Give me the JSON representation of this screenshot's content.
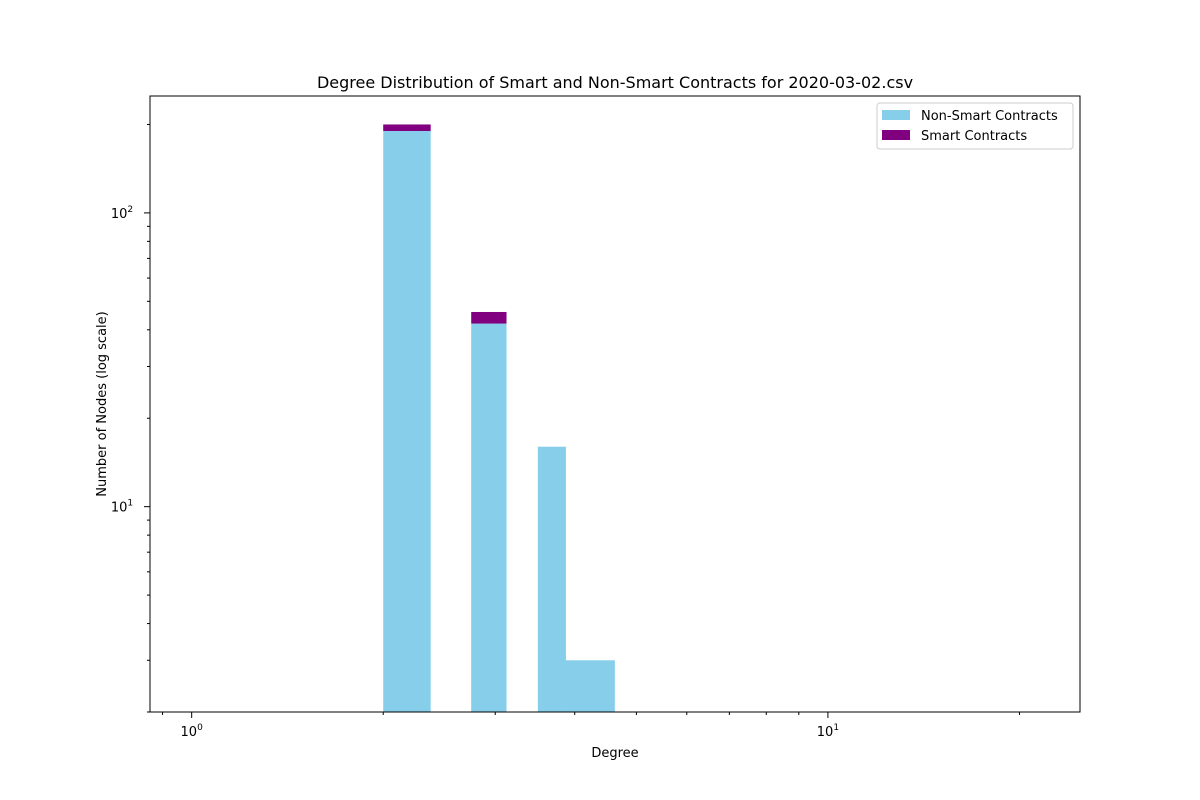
{
  "chart_data": {
    "type": "bar",
    "title": "Degree Distribution of Smart and Non-Smart Contracts for 2020-03-02.csv",
    "xlabel": "Degree",
    "ylabel": "Number of Nodes (log scale)",
    "xscale": "log",
    "yscale": "log",
    "xlim": [
      0.86,
      24.9
    ],
    "ylim": [
      2.0,
      250
    ],
    "x_ticks": [
      {
        "value": 1,
        "base": "10",
        "exp": "0"
      },
      {
        "value": 10,
        "base": "10",
        "exp": "1"
      }
    ],
    "y_ticks": [
      {
        "value": 10,
        "base": "10",
        "exp": "1"
      },
      {
        "value": 100,
        "base": "10",
        "exp": "2"
      }
    ],
    "stacked": true,
    "bins": [
      {
        "x0": 2.0,
        "x1": 2.375
      },
      {
        "x0": 2.75,
        "x1": 3.125
      },
      {
        "x0": 3.5,
        "x1": 3.875
      },
      {
        "x0": 3.875,
        "x1": 4.25
      },
      {
        "x0": 4.25,
        "x1": 4.625
      }
    ],
    "series": [
      {
        "name": "Non-Smart Contracts",
        "color": "#87ceeb",
        "values": [
          190,
          42,
          16,
          3,
          3
        ]
      },
      {
        "name": "Smart Contracts",
        "color": "#800080",
        "values": [
          10,
          4,
          0,
          0,
          0
        ]
      }
    ],
    "legend_position": "upper-right",
    "grid": false
  }
}
